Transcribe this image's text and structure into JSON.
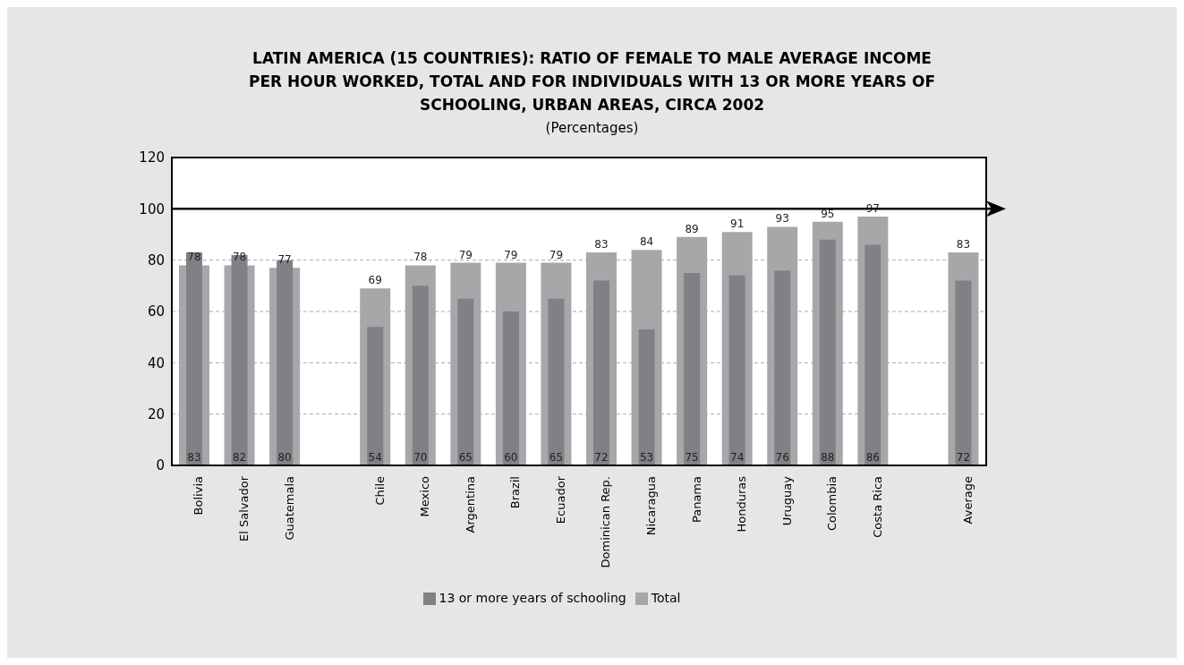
{
  "chart_data": {
    "type": "bar",
    "title": "LATIN AMERICA (15 COUNTRIES): RATIO OF FEMALE TO MALE AVERAGE INCOME PER HOUR WORKED, TOTAL AND FOR INDIVIDUALS WITH 13 OR MORE YEARS OF SCHOOLING, URBAN AREAS, CIRCA 2002",
    "subtitle": "(Percentages)",
    "categories": [
      "Bolivia",
      "El Salvador",
      "Guatemala",
      null,
      "Chile",
      "Mexico",
      "Argentina",
      "Brazil",
      "Ecuador",
      "Dominican Rep.",
      "Nicaragua",
      "Panama",
      "Honduras",
      "Uruguay",
      "Colombia",
      "Costa Rica",
      null,
      "Average"
    ],
    "series": [
      {
        "name": "Total",
        "color": "#a7a7a9",
        "values": [
          78,
          78,
          77,
          null,
          69,
          78,
          79,
          79,
          79,
          83,
          84,
          89,
          91,
          93,
          95,
          97,
          null,
          83
        ]
      },
      {
        "name": "13 or more years of schooling",
        "color": "#808086",
        "values": [
          83,
          82,
          80,
          null,
          54,
          70,
          65,
          60,
          65,
          72,
          53,
          75,
          74,
          76,
          88,
          86,
          null,
          72
        ]
      }
    ],
    "ylim": [
      0,
      120
    ],
    "yticks": [
      0,
      20,
      40,
      60,
      80,
      100,
      120
    ],
    "grid": "y",
    "legend": "bottom",
    "data_labels": true,
    "ref_lines": [
      {
        "axis": "y",
        "value": 100,
        "color": "#000000"
      }
    ]
  }
}
